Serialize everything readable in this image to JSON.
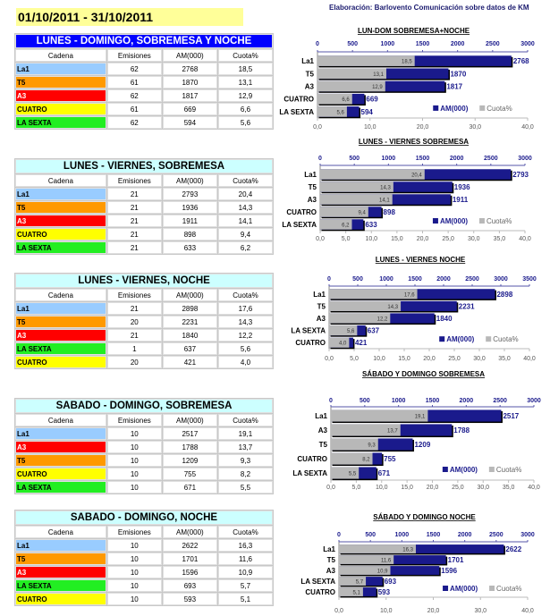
{
  "date_range": "01/10/2011 - 31/10/2011",
  "credit": "Elaboración: Barlovento Comunicación sobre datos de KM",
  "columns": [
    "Cadena",
    "Emisiones",
    "AM(000)",
    "Cuota%"
  ],
  "channel_colors": {
    "La1": "#99ccff",
    "T5": "#ff9900",
    "A3": "#ff0000",
    "CUATRO": "#ffff00",
    "LA SEXTA": "#22ee22"
  },
  "header_colors": {
    "primary": "#0000ff",
    "secondary": "#ccffff"
  },
  "tables": [
    {
      "title": "LUNES - DOMINGO, SOBREMESA Y NOCHE",
      "rows": [
        [
          "La1",
          "62",
          "2768",
          "18,5"
        ],
        [
          "T5",
          "61",
          "1870",
          "13,1"
        ],
        [
          "A3",
          "62",
          "1817",
          "12,9"
        ],
        [
          "CUATRO",
          "61",
          "669",
          "6,6"
        ],
        [
          "LA SEXTA",
          "62",
          "594",
          "5,6"
        ]
      ]
    },
    {
      "title": "LUNES - VIERNES, SOBREMESA",
      "rows": [
        [
          "La1",
          "21",
          "2793",
          "20,4"
        ],
        [
          "T5",
          "21",
          "1936",
          "14,3"
        ],
        [
          "A3",
          "21",
          "1911",
          "14,1"
        ],
        [
          "CUATRO",
          "21",
          "898",
          "9,4"
        ],
        [
          "LA SEXTA",
          "21",
          "633",
          "6,2"
        ]
      ]
    },
    {
      "title": "LUNES - VIERNES, NOCHE",
      "rows": [
        [
          "La1",
          "21",
          "2898",
          "17,6"
        ],
        [
          "T5",
          "20",
          "2231",
          "14,3"
        ],
        [
          "A3",
          "21",
          "1840",
          "12,2"
        ],
        [
          "LA SEXTA",
          "1",
          "637",
          "5,6"
        ],
        [
          "CUATRO",
          "20",
          "421",
          "4,0"
        ]
      ]
    },
    {
      "title": "SABADO - DOMINGO, SOBREMESA",
      "rows": [
        [
          "La1",
          "10",
          "2517",
          "19,1"
        ],
        [
          "A3",
          "10",
          "1788",
          "13,7"
        ],
        [
          "T5",
          "10",
          "1209",
          "9,3"
        ],
        [
          "CUATRO",
          "10",
          "755",
          "8,2"
        ],
        [
          "LA SEXTA",
          "10",
          "671",
          "5,5"
        ]
      ]
    },
    {
      "title": "SABADO - DOMINGO, NOCHE",
      "rows": [
        [
          "La1",
          "10",
          "2622",
          "16,3"
        ],
        [
          "T5",
          "10",
          "1701",
          "11,6"
        ],
        [
          "A3",
          "10",
          "1596",
          "10,9"
        ],
        [
          "LA SEXTA",
          "10",
          "693",
          "5,7"
        ],
        [
          "CUATRO",
          "10",
          "593",
          "5,1"
        ]
      ]
    }
  ],
  "chart_data": [
    {
      "type": "bar",
      "title": "LUN-DOM SOBREMESA+NOCHE",
      "categories": [
        "La1",
        "T5",
        "A3",
        "CUATRO",
        "LA SEXTA"
      ],
      "series": [
        {
          "name": "AM(000)",
          "values": [
            2768,
            1870,
            1817,
            669,
            594
          ],
          "color": "#1a1a8c",
          "axis": "top",
          "xlim": [
            0,
            3000
          ],
          "ticks": [
            "0",
            "500",
            "1000",
            "1500",
            "2000",
            "2500",
            "3000"
          ]
        },
        {
          "name": "Cuota%",
          "values": [
            18.5,
            13.1,
            12.9,
            6.6,
            5.6
          ],
          "labels": [
            "18,5",
            "13,1",
            "12,9",
            "6,6",
            "5,6"
          ],
          "color": "#b8b8b8",
          "axis": "bottom",
          "xlim": [
            0,
            40
          ],
          "ticks": [
            "0,0",
            "10,0",
            "20,0",
            "30,0",
            "40,0"
          ]
        }
      ],
      "legend": "bottom-right"
    },
    {
      "type": "bar",
      "title": "LUNES - VIERNES SOBREMESA",
      "categories": [
        "La1",
        "T5",
        "A3",
        "CUATRO",
        "LA SEXTA"
      ],
      "series": [
        {
          "name": "AM(000)",
          "values": [
            2793,
            1936,
            1911,
            898,
            633
          ],
          "color": "#1a1a8c",
          "axis": "top",
          "xlim": [
            0,
            3000
          ],
          "ticks": [
            "0",
            "500",
            "1000",
            "1500",
            "2000",
            "2500",
            "3000"
          ]
        },
        {
          "name": "Cuota%",
          "values": [
            20.4,
            14.3,
            14.1,
            9.4,
            6.2
          ],
          "labels": [
            "20,4",
            "14,3",
            "14,1",
            "9,4",
            "6,2"
          ],
          "color": "#b8b8b8",
          "axis": "bottom",
          "xlim": [
            0,
            40
          ],
          "ticks": [
            "0,0",
            "5,0",
            "10,0",
            "15,0",
            "20,0",
            "25,0",
            "30,0",
            "35,0",
            "40,0"
          ]
        }
      ],
      "legend": "bottom-right"
    },
    {
      "type": "bar",
      "title": "LUNES - VIERNES  NOCHE",
      "categories": [
        "La1",
        "T5",
        "A3",
        "LA SEXTA",
        "CUATRO"
      ],
      "series": [
        {
          "name": "AM(000)",
          "values": [
            2898,
            2231,
            1840,
            637,
            421
          ],
          "color": "#1a1a8c",
          "axis": "top",
          "xlim": [
            0,
            3500
          ],
          "ticks": [
            "0",
            "500",
            "1000",
            "1500",
            "2000",
            "2500",
            "3000",
            "3500"
          ]
        },
        {
          "name": "Cuota%",
          "values": [
            17.6,
            14.3,
            12.2,
            5.6,
            4.0
          ],
          "labels": [
            "17,6",
            "14,3",
            "12,2",
            "5,6",
            "4,0"
          ],
          "color": "#b8b8b8",
          "axis": "bottom",
          "xlim": [
            0,
            40
          ],
          "ticks": [
            "0,0",
            "5,0",
            "10,0",
            "15,0",
            "20,0",
            "25,0",
            "30,0",
            "35,0",
            "40,0"
          ]
        }
      ],
      "legend": "bottom-right"
    },
    {
      "type": "bar",
      "title": "SÁBADO Y DOMINGO SOBREMESA",
      "categories": [
        "La1",
        "A3",
        "T5",
        "CUATRO",
        "LA SEXTA"
      ],
      "series": [
        {
          "name": "AM(000)",
          "values": [
            2517,
            1788,
            1209,
            755,
            671
          ],
          "color": "#1a1a8c",
          "axis": "top",
          "xlim": [
            0,
            3000
          ],
          "ticks": [
            "0",
            "500",
            "1000",
            "1500",
            "2000",
            "2500",
            "3000"
          ]
        },
        {
          "name": "Cuota%",
          "values": [
            19.1,
            13.7,
            9.3,
            8.2,
            5.5
          ],
          "labels": [
            "19,1",
            "13,7",
            "9,3",
            "8,2",
            "5,5"
          ],
          "color": "#b8b8b8",
          "axis": "bottom",
          "xlim": [
            0,
            40
          ],
          "ticks": [
            "0,0",
            "5,0",
            "10,0",
            "15,0",
            "20,0",
            "25,0",
            "30,0",
            "35,0",
            "40,0"
          ]
        }
      ],
      "legend": "bottom-right"
    },
    {
      "type": "bar",
      "title": "SÁBADO Y DOMINGO  NOCHE",
      "categories": [
        "La1",
        "T5",
        "A3",
        "LA SEXTA",
        "CUATRO"
      ],
      "series": [
        {
          "name": "AM(000)",
          "values": [
            2622,
            1701,
            1596,
            693,
            593
          ],
          "color": "#1a1a8c",
          "axis": "top",
          "xlim": [
            0,
            3000
          ],
          "ticks": [
            "0",
            "500",
            "1000",
            "1500",
            "2000",
            "2500",
            "3000"
          ]
        },
        {
          "name": "Cuota%",
          "values": [
            16.3,
            11.6,
            10.9,
            5.7,
            5.1
          ],
          "labels": [
            "16,3",
            "11,6",
            "10,9",
            "5,7",
            "5,1"
          ],
          "color": "#b8b8b8",
          "axis": "bottom",
          "xlim": [
            0,
            40
          ],
          "ticks": [
            "0,0",
            "10,0",
            "20,0",
            "30,0",
            "40,0"
          ]
        }
      ],
      "legend": "bottom-right"
    }
  ]
}
